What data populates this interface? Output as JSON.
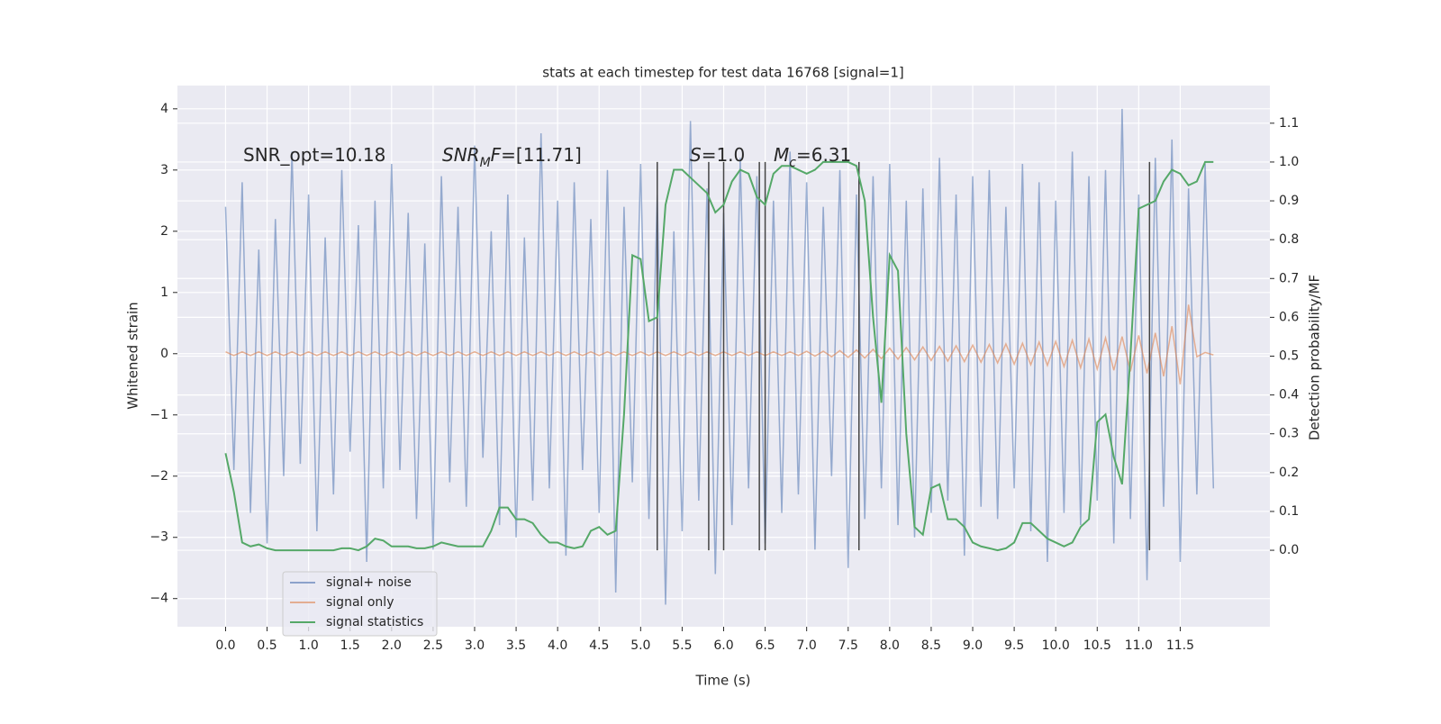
{
  "chart_data": {
    "type": "line",
    "title": "stats at each timestep for test data 16768 [signal=1]",
    "x_label": "Time (s)",
    "y_label": "Whitened strain",
    "y2_label": "Detection probability/MF",
    "grid": true,
    "legend": "lower left",
    "xlim": [
      -0.58,
      12.58
    ],
    "ylim": [
      -4.46,
      4.38
    ],
    "y2lim": [
      -0.197,
      1.197
    ],
    "xticks": [
      {
        "value": 0,
        "label": "0.0"
      },
      0.5,
      {
        "value": 1,
        "label": "1.0"
      },
      1.5,
      {
        "value": 2,
        "label": "2.0"
      },
      2.5,
      {
        "value": 3,
        "label": "3.0"
      },
      3.5,
      {
        "value": 4,
        "label": "4.0"
      },
      4.5,
      {
        "value": 5,
        "label": "5.0"
      },
      5.5,
      {
        "value": 6,
        "label": "6.0"
      },
      6.5,
      {
        "value": 7,
        "label": "7.0"
      },
      7.5,
      {
        "value": 8,
        "label": "8.0"
      },
      8.5,
      {
        "value": 9,
        "label": "9.0"
      },
      9.5,
      {
        "value": 10,
        "label": "10.0"
      },
      10.5,
      {
        "value": 11,
        "label": "11.0"
      },
      11.5
    ],
    "yticks": [
      {
        "value": -4,
        "label": "−4"
      },
      {
        "value": -3,
        "label": "−3"
      },
      {
        "value": -2,
        "label": "−2"
      },
      {
        "value": -1,
        "label": "−1"
      },
      0,
      1,
      2,
      3,
      4
    ],
    "y2ticks": [
      {
        "value": 0,
        "label": "0.0"
      },
      0.1,
      0.2,
      0.3,
      0.4,
      0.5,
      0.6,
      0.7,
      0.8,
      0.9,
      {
        "value": 1,
        "label": "1.0"
      },
      1.1
    ],
    "x": [
      0,
      0.1,
      0.2,
      0.3,
      0.4,
      0.5,
      0.6,
      0.7,
      0.8,
      0.9,
      1,
      1.1,
      1.2,
      1.3,
      1.4,
      1.5,
      1.6,
      1.7,
      1.8,
      1.9,
      2,
      2.1,
      2.2,
      2.3,
      2.4,
      2.5,
      2.6,
      2.7,
      2.8,
      2.9,
      3,
      3.1,
      3.2,
      3.3,
      3.4,
      3.5,
      3.6,
      3.7,
      3.8,
      3.9,
      4,
      4.1,
      4.2,
      4.3,
      4.4,
      4.5,
      4.6,
      4.7,
      4.8,
      4.9,
      5,
      5.1,
      5.2,
      5.3,
      5.4,
      5.5,
      5.6,
      5.7,
      5.8,
      5.9,
      6,
      6.1,
      6.2,
      6.3,
      6.4,
      6.5,
      6.6,
      6.7,
      6.8,
      6.9,
      7,
      7.1,
      7.2,
      7.3,
      7.4,
      7.5,
      7.6,
      7.7,
      7.8,
      7.9,
      8,
      8.1,
      8.2,
      8.3,
      8.4,
      8.5,
      8.6,
      8.7,
      8.8,
      8.9,
      9,
      9.1,
      9.2,
      9.3,
      9.4,
      9.5,
      9.6,
      9.7,
      9.8,
      9.9,
      10,
      10.1,
      10.2,
      10.3,
      10.4,
      10.5,
      10.6,
      10.7,
      10.8,
      10.9,
      11,
      11.1,
      11.2,
      11.3,
      11.4,
      11.5,
      11.6,
      11.7,
      11.8,
      11.9
    ],
    "series": [
      {
        "name": "signal+ noise",
        "color": "#4c72b0",
        "values": [
          2.4,
          -1.9,
          2.8,
          -2.6,
          1.7,
          -3.1,
          2.2,
          -2.0,
          3.3,
          -1.8,
          2.6,
          -2.9,
          1.9,
          -2.3,
          3.0,
          -1.6,
          2.1,
          -3.4,
          2.5,
          -2.2,
          3.1,
          -1.9,
          2.3,
          -2.7,
          1.8,
          -3.2,
          2.9,
          -2.1,
          2.4,
          -2.5,
          3.4,
          -1.7,
          2.0,
          -2.8,
          2.6,
          -3.0,
          1.9,
          -2.4,
          3.6,
          -2.2,
          2.5,
          -3.3,
          2.8,
          -1.9,
          2.2,
          -2.6,
          3.0,
          -3.9,
          2.4,
          -2.1,
          3.1,
          -2.7,
          2.6,
          -4.1,
          2.0,
          -2.9,
          3.8,
          -2.4,
          2.7,
          -3.6,
          2.3,
          -2.8,
          3.2,
          -2.2,
          2.9,
          -3.1,
          2.5,
          -2.6,
          3.3,
          -2.3,
          2.8,
          -3.2,
          2.4,
          -2.0,
          3.0,
          -3.5,
          2.6,
          -2.7,
          2.9,
          -2.2,
          3.1,
          -2.8,
          2.5,
          -3.0,
          2.7,
          -2.6,
          3.2,
          -2.4,
          2.6,
          -3.3,
          2.9,
          -2.5,
          3.0,
          -2.7,
          2.4,
          -2.2,
          3.1,
          -2.9,
          2.8,
          -3.4,
          2.5,
          -2.6,
          3.3,
          -2.8,
          2.9,
          -2.4,
          3.0,
          -3.1,
          4.0,
          -2.7,
          2.6,
          -3.7,
          3.2,
          -2.5,
          3.5,
          -3.4,
          2.7,
          -2.3,
          3.1,
          -2.2
        ]
      },
      {
        "name": "signal only",
        "color": "#dd8452",
        "values": [
          0.03,
          -0.03,
          0.03,
          -0.03,
          0.03,
          -0.03,
          0.03,
          -0.03,
          0.03,
          -0.03,
          0.03,
          -0.03,
          0.03,
          -0.03,
          0.03,
          -0.03,
          0.03,
          -0.03,
          0.03,
          -0.03,
          0.03,
          -0.03,
          0.03,
          -0.03,
          0.03,
          -0.03,
          0.03,
          -0.03,
          0.03,
          -0.03,
          0.03,
          -0.03,
          0.03,
          -0.03,
          0.03,
          -0.03,
          0.03,
          -0.03,
          0.03,
          -0.03,
          0.03,
          -0.03,
          0.03,
          -0.03,
          0.03,
          -0.03,
          0.03,
          -0.03,
          0.03,
          -0.03,
          0.03,
          -0.03,
          0.03,
          -0.03,
          0.03,
          -0.03,
          0.03,
          -0.03,
          0.03,
          -0.03,
          0.03,
          -0.03,
          0.03,
          -0.03,
          0.03,
          -0.03,
          0.03,
          -0.03,
          0.03,
          -0.03,
          0.04,
          -0.04,
          0.04,
          -0.05,
          0.05,
          -0.06,
          0.06,
          -0.07,
          0.07,
          -0.08,
          0.09,
          -0.09,
          0.1,
          -0.1,
          0.11,
          -0.11,
          0.12,
          -0.12,
          0.13,
          -0.13,
          0.14,
          -0.14,
          0.15,
          -0.15,
          0.16,
          -0.17,
          0.17,
          -0.18,
          0.19,
          -0.19,
          0.2,
          -0.21,
          0.22,
          -0.23,
          0.24,
          -0.25,
          0.26,
          -0.27,
          0.28,
          -0.29,
          0.3,
          -0.32,
          0.34,
          -0.37,
          0.45,
          -0.5,
          0.8,
          -0.05,
          0.02,
          -0.02
        ]
      },
      {
        "name": "signal statistics",
        "color": "#55a868",
        "axis": "y2",
        "values": [
          0.25,
          0.15,
          0.02,
          0.01,
          0.015,
          0.005,
          0.0,
          0.0,
          0.0,
          0.0,
          0.0,
          0.0,
          0.0,
          0.0,
          0.005,
          0.005,
          0.0,
          0.01,
          0.03,
          0.025,
          0.01,
          0.01,
          0.01,
          0.005,
          0.005,
          0.01,
          0.02,
          0.015,
          0.01,
          0.01,
          0.01,
          0.01,
          0.05,
          0.11,
          0.11,
          0.08,
          0.08,
          0.07,
          0.04,
          0.02,
          0.02,
          0.01,
          0.005,
          0.01,
          0.05,
          0.06,
          0.04,
          0.05,
          0.35,
          0.76,
          0.75,
          0.59,
          0.6,
          0.89,
          0.98,
          0.98,
          0.96,
          0.94,
          0.92,
          0.87,
          0.89,
          0.95,
          0.98,
          0.97,
          0.91,
          0.89,
          0.97,
          0.99,
          0.99,
          0.98,
          0.97,
          0.98,
          1.0,
          1.0,
          1.0,
          1.0,
          0.99,
          0.9,
          0.6,
          0.38,
          0.76,
          0.72,
          0.3,
          0.06,
          0.04,
          0.16,
          0.17,
          0.08,
          0.08,
          0.06,
          0.02,
          0.01,
          0.005,
          0.0,
          0.005,
          0.02,
          0.07,
          0.07,
          0.05,
          0.03,
          0.02,
          0.01,
          0.02,
          0.06,
          0.08,
          0.33,
          0.35,
          0.24,
          0.17,
          0.5,
          0.88,
          0.89,
          0.9,
          0.95,
          0.98,
          0.97,
          0.94,
          0.95,
          1.0,
          1.0
        ]
      }
    ],
    "vlines": {
      "x": [
        5.2,
        5.82,
        6.0,
        6.43,
        6.5,
        7.63,
        11.13
      ],
      "ymin": 0,
      "ymax": 1.0,
      "axis": "y2",
      "color": "#444444"
    },
    "annotations": [
      {
        "parts": [
          {
            "text": "SNR_opt=10.18",
            "style": "normal"
          }
        ]
      },
      {
        "parts": [
          {
            "text": "SNR",
            "style": "italic"
          },
          {
            "text": "M",
            "style": "sub"
          },
          {
            "text": "F",
            "style": "italic"
          },
          {
            "text": "=[11.71]",
            "style": "normal"
          }
        ]
      },
      {
        "parts": [
          {
            "text": "S",
            "style": "italic"
          },
          {
            "text": "=1.0",
            "style": "normal"
          }
        ]
      },
      {
        "parts": [
          {
            "text": "M",
            "style": "italic"
          },
          {
            "text": "c",
            "style": "sub"
          },
          {
            "text": "=6.31",
            "style": "normal"
          }
        ]
      }
    ]
  }
}
